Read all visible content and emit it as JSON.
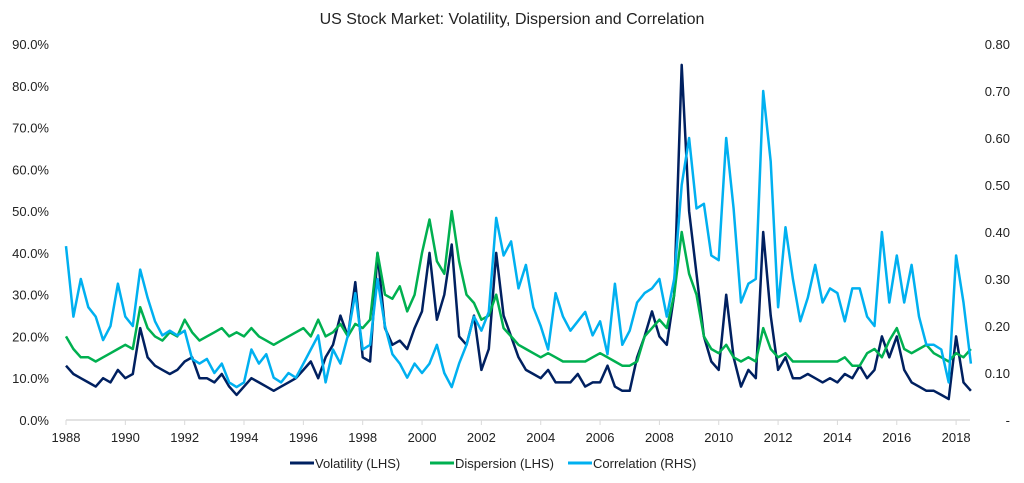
{
  "chart_data": {
    "type": "line",
    "title": "US Stock Market: Volatility, Dispersion and Correlation",
    "xlim": [
      1988,
      2018.5
    ],
    "x_ticks": [
      "1988",
      "1990",
      "1992",
      "1994",
      "1996",
      "1998",
      "2000",
      "2002",
      "2004",
      "2006",
      "2008",
      "2010",
      "2012",
      "2014",
      "2016",
      "2018"
    ],
    "y_left": {
      "range": [
        0,
        90
      ],
      "ticks": [
        "0.0%",
        "10.0%",
        "20.0%",
        "30.0%",
        "40.0%",
        "50.0%",
        "60.0%",
        "70.0%",
        "80.0%",
        "90.0%"
      ]
    },
    "y_right": {
      "range": [
        0,
        0.8
      ],
      "ticks": [
        "-",
        "0.10",
        "0.20",
        "0.30",
        "0.40",
        "0.50",
        "0.60",
        "0.70",
        "0.80"
      ]
    },
    "grid": false,
    "legend_position": "bottom",
    "x_start": 1988,
    "x_step_years": 0.25,
    "series": [
      {
        "name": "Volatility (LHS)",
        "axis": "left",
        "color": "#002060",
        "values": [
          13,
          11,
          10,
          9,
          8,
          10,
          9,
          12,
          10,
          11,
          22,
          15,
          13,
          12,
          11,
          12,
          14,
          15,
          10,
          10,
          9,
          11,
          8,
          6,
          8,
          10,
          9,
          8,
          7,
          8,
          9,
          10,
          12,
          14,
          10,
          15,
          18,
          25,
          20,
          33,
          15,
          14,
          40,
          22,
          18,
          19,
          17,
          22,
          26,
          40,
          24,
          30,
          42,
          20,
          18,
          25,
          12,
          17,
          40,
          25,
          20,
          15,
          12,
          11,
          10,
          12,
          9,
          9,
          9,
          11,
          8,
          9,
          9,
          13,
          8,
          7,
          7,
          15,
          20,
          26,
          20,
          18,
          30,
          85,
          50,
          35,
          20,
          14,
          12,
          30,
          15,
          8,
          12,
          10,
          45,
          25,
          12,
          15,
          10,
          10,
          11,
          10,
          9,
          10,
          9,
          11,
          10,
          13,
          10,
          12,
          20,
          15,
          20,
          12,
          9,
          8,
          7,
          7,
          6,
          5,
          20,
          9,
          7
        ]
      },
      {
        "name": "Dispersion (LHS)",
        "axis": "left",
        "color": "#00b050",
        "values": [
          20,
          17,
          15,
          15,
          14,
          15,
          16,
          17,
          18,
          17,
          27,
          22,
          20,
          19,
          21,
          20,
          24,
          21,
          19,
          20,
          21,
          22,
          20,
          21,
          20,
          22,
          20,
          19,
          18,
          19,
          20,
          21,
          22,
          20,
          24,
          20,
          21,
          23,
          20,
          23,
          22,
          24,
          40,
          30,
          29,
          32,
          26,
          30,
          40,
          48,
          38,
          35,
          50,
          38,
          30,
          28,
          24,
          25,
          30,
          22,
          20,
          18,
          17,
          16,
          15,
          16,
          15,
          14,
          14,
          14,
          14,
          15,
          16,
          15,
          14,
          13,
          13,
          14,
          20,
          22,
          24,
          22,
          30,
          45,
          35,
          30,
          20,
          17,
          16,
          18,
          15,
          14,
          15,
          14,
          22,
          17,
          15,
          16,
          14,
          14,
          14,
          14,
          14,
          14,
          14,
          15,
          13,
          13,
          16,
          17,
          15,
          19,
          22,
          17,
          16,
          17,
          18,
          16,
          15,
          14,
          16,
          15,
          17
        ]
      },
      {
        "name": "Correlation (RHS)",
        "axis": "right",
        "color": "#00b0f0",
        "values": [
          0.37,
          0.22,
          0.3,
          0.24,
          0.22,
          0.17,
          0.2,
          0.29,
          0.22,
          0.2,
          0.32,
          0.26,
          0.21,
          0.18,
          0.19,
          0.18,
          0.19,
          0.13,
          0.12,
          0.13,
          0.1,
          0.12,
          0.08,
          0.07,
          0.08,
          0.15,
          0.12,
          0.14,
          0.09,
          0.08,
          0.1,
          0.09,
          0.12,
          0.15,
          0.18,
          0.08,
          0.15,
          0.12,
          0.18,
          0.27,
          0.15,
          0.16,
          0.3,
          0.2,
          0.14,
          0.12,
          0.09,
          0.12,
          0.1,
          0.12,
          0.16,
          0.1,
          0.07,
          0.12,
          0.16,
          0.22,
          0.19,
          0.23,
          0.43,
          0.35,
          0.38,
          0.28,
          0.33,
          0.24,
          0.2,
          0.15,
          0.27,
          0.22,
          0.19,
          0.21,
          0.23,
          0.18,
          0.21,
          0.14,
          0.29,
          0.16,
          0.19,
          0.25,
          0.27,
          0.28,
          0.3,
          0.22,
          0.3,
          0.5,
          0.6,
          0.45,
          0.46,
          0.35,
          0.34,
          0.6,
          0.45,
          0.25,
          0.29,
          0.3,
          0.7,
          0.55,
          0.24,
          0.41,
          0.3,
          0.21,
          0.26,
          0.33,
          0.25,
          0.28,
          0.27,
          0.21,
          0.28,
          0.28,
          0.22,
          0.2,
          0.4,
          0.25,
          0.35,
          0.25,
          0.33,
          0.22,
          0.16,
          0.16,
          0.15,
          0.08,
          0.35,
          0.25,
          0.12
        ]
      }
    ]
  }
}
